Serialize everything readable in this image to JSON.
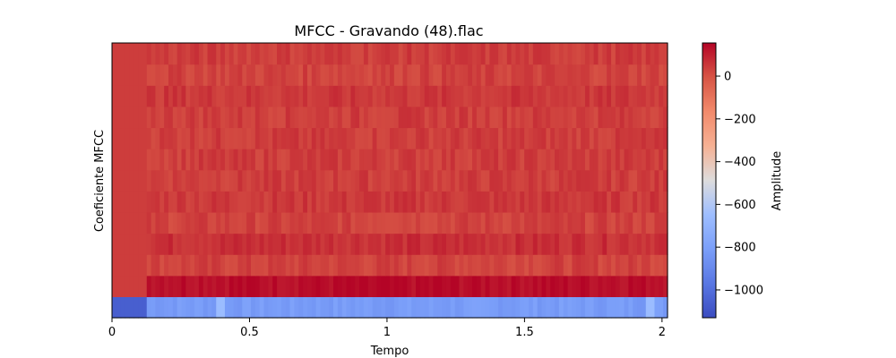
{
  "chart_data": {
    "type": "heatmap",
    "title": "MFCC - Gravando (48).flac",
    "xlabel": "Tempo",
    "ylabel": "Coeficiente MFCC",
    "xlim": [
      0,
      2.02
    ],
    "x_ticks": [
      0,
      0.5,
      1,
      1.5,
      2
    ],
    "x_tick_labels": [
      "0",
      "0.5",
      "1",
      "1.5",
      "2"
    ],
    "y_ticks_shown": false,
    "n_coefficients": 13,
    "n_frames": 128,
    "silence_until": 0.12,
    "coefficient_levels": [
      -820,
      140,
      30,
      70,
      30,
      50,
      40,
      40,
      40,
      40,
      50,
      30,
      40
    ],
    "silence_level": -1060,
    "colormap": "coolwarm",
    "colorbar": {
      "label": "Amplitude",
      "range": [
        -1130,
        155
      ],
      "ticks": [
        0,
        -200,
        -400,
        -600,
        -800,
        -1000
      ],
      "tick_labels": [
        "0",
        "−200",
        "−400",
        "−600",
        "−800",
        "−1000"
      ]
    }
  }
}
